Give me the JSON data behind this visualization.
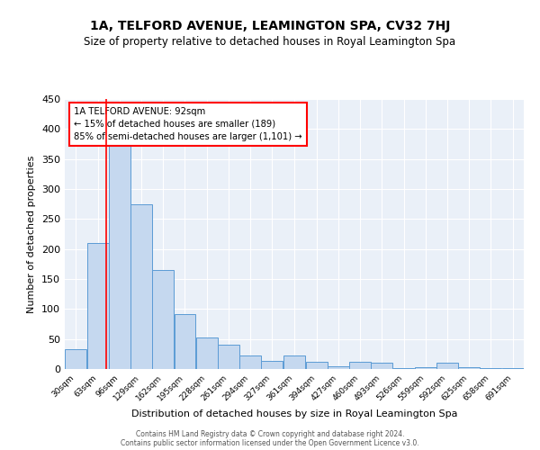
{
  "title": "1A, TELFORD AVENUE, LEAMINGTON SPA, CV32 7HJ",
  "subtitle": "Size of property relative to detached houses in Royal Leamington Spa",
  "xlabel": "Distribution of detached houses by size in Royal Leamington Spa",
  "ylabel": "Number of detached properties",
  "bar_color": "#c5d8ef",
  "bar_edge_color": "#5b9bd5",
  "bg_color": "#eaf0f8",
  "grid_color": "#ffffff",
  "redline_x": 92,
  "bin_edges": [
    30,
    63,
    96,
    129,
    162,
    195,
    228,
    261,
    294,
    327,
    361,
    394,
    427,
    460,
    493,
    526,
    559,
    592,
    625,
    658,
    691,
    724
  ],
  "bin_labels": [
    "30sqm",
    "63sqm",
    "96sqm",
    "129sqm",
    "162sqm",
    "195sqm",
    "228sqm",
    "261sqm",
    "294sqm",
    "327sqm",
    "361sqm",
    "394sqm",
    "427sqm",
    "460sqm",
    "493sqm",
    "526sqm",
    "559sqm",
    "592sqm",
    "625sqm",
    "658sqm",
    "691sqm"
  ],
  "values": [
    33,
    210,
    378,
    275,
    165,
    92,
    52,
    40,
    23,
    13,
    22,
    12,
    5,
    12,
    10,
    2,
    3,
    10,
    3,
    2,
    1
  ],
  "ylim": [
    0,
    450
  ],
  "yticks": [
    0,
    50,
    100,
    150,
    200,
    250,
    300,
    350,
    400,
    450
  ],
  "annotation_title": "1A TELFORD AVENUE: 92sqm",
  "annotation_line1": "← 15% of detached houses are smaller (189)",
  "annotation_line2": "85% of semi-detached houses are larger (1,101) →",
  "footer1": "Contains HM Land Registry data © Crown copyright and database right 2024.",
  "footer2": "Contains public sector information licensed under the Open Government Licence v3.0."
}
